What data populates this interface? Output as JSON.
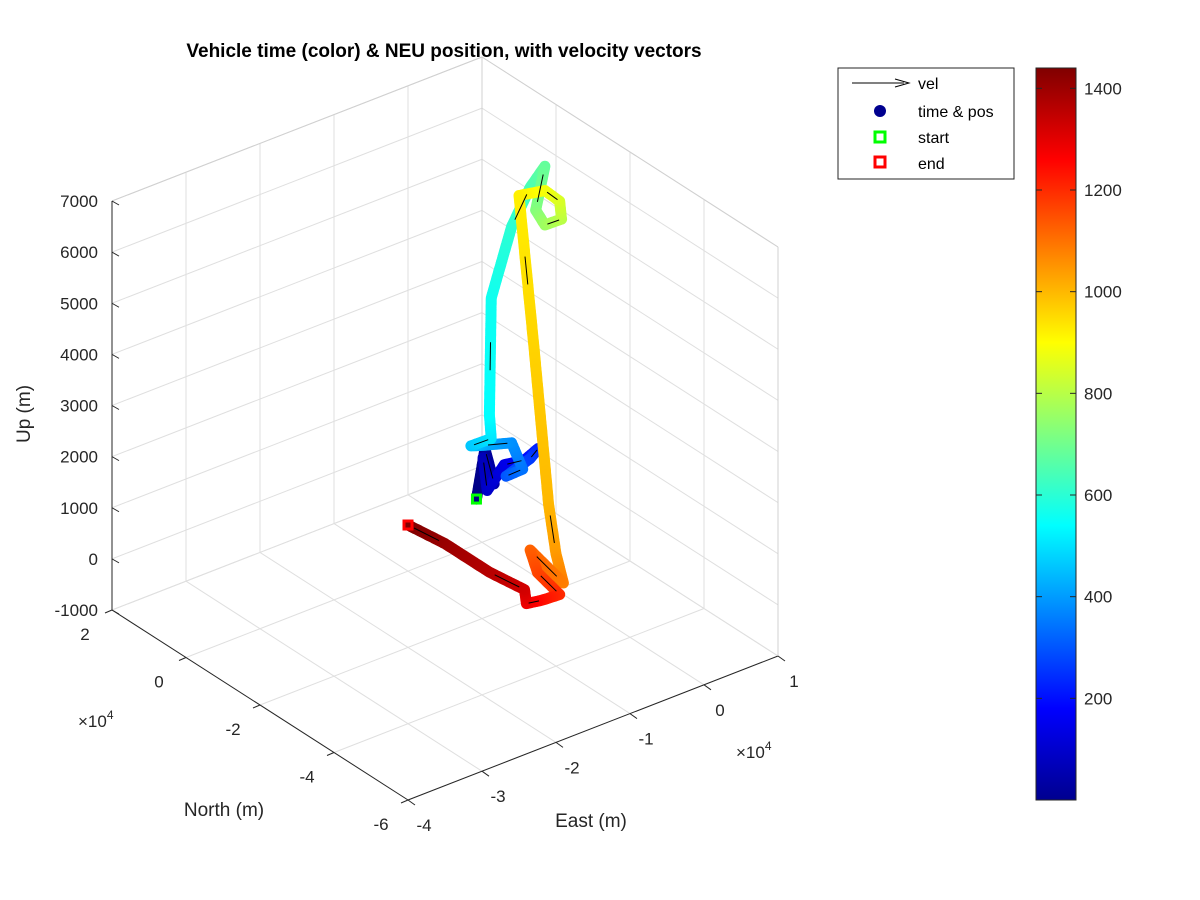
{
  "chart_data": {
    "type": "scatter3d",
    "title": "Vehicle time (color) & NEU position, with velocity vectors",
    "xlabel": "East (m)",
    "ylabel": "North (m)",
    "zlabel": "Up (m)",
    "x_exponent": "×10",
    "x_exponent_power": "4",
    "y_exponent": "×10",
    "y_exponent_power": "4",
    "xlim": [
      -40000,
      10000
    ],
    "ylim": [
      -60000,
      20000
    ],
    "zlim": [
      -1000,
      7000
    ],
    "x_ticks": [
      "-4",
      "-3",
      "-2",
      "-1",
      "0",
      "1"
    ],
    "y_ticks": [
      "-6",
      "-4",
      "-2",
      "0",
      "2"
    ],
    "z_ticks": [
      "-1000",
      "0",
      "1000",
      "2000",
      "3000",
      "4000",
      "5000",
      "6000",
      "7000"
    ],
    "grid": true,
    "legend_position": "top-right",
    "legend": [
      {
        "label": "vel",
        "marker": "arrow",
        "color": "#000000"
      },
      {
        "label": "time & pos",
        "marker": "filled-circle",
        "color": "#00008f"
      },
      {
        "label": "start",
        "marker": "open-square",
        "color": "#00ff00"
      },
      {
        "label": "end",
        "marker": "open-square",
        "color": "#ff0000"
      }
    ],
    "colorbar": {
      "colormap": "jet",
      "range": [
        0,
        1440
      ],
      "ticks": [
        "200",
        "400",
        "600",
        "800",
        "1000",
        "1200",
        "1400"
      ]
    },
    "trajectory": [
      {
        "t": 0,
        "x": -1500,
        "y": -1500,
        "z": 0
      },
      {
        "t": 30,
        "x": 100,
        "y": -600,
        "z": 850
      },
      {
        "t": 60,
        "x": 2000,
        "y": 700,
        "z": 0
      },
      {
        "t": 80,
        "x": 1800,
        "y": 3300,
        "z": 400
      },
      {
        "t": 100,
        "x": 3200,
        "y": 5000,
        "z": -400
      },
      {
        "t": 140,
        "x": 6000,
        "y": 6000,
        "z": -100
      },
      {
        "t": 180,
        "x": 9000,
        "y": 6500,
        "z": -200
      },
      {
        "t": 220,
        "x": 11000,
        "y": 6800,
        "z": -100
      },
      {
        "t": 260,
        "x": 11000,
        "y": 9000,
        "z": -400
      },
      {
        "t": 300,
        "x": 8000,
        "y": 9500,
        "z": -600
      },
      {
        "t": 340,
        "x": 9000,
        "y": 7000,
        "z": -400
      },
      {
        "t": 380,
        "x": 9500,
        "y": 11000,
        "z": -100
      },
      {
        "t": 420,
        "x": 7500,
        "y": 14500,
        "z": -200
      },
      {
        "t": 460,
        "x": 5000,
        "y": 13000,
        "z": 0
      },
      {
        "t": 500,
        "x": 7000,
        "y": 11500,
        "z": 100
      },
      {
        "t": 540,
        "x": 6000,
        "y": 10000,
        "z": 700
      },
      {
        "t": 560,
        "x": 6000,
        "y": 9500,
        "z": 3000
      },
      {
        "t": 600,
        "x": 7000,
        "y": 6000,
        "z": 4500
      },
      {
        "t": 640,
        "x": 7000,
        "y": 1000,
        "z": 5500
      },
      {
        "t": 680,
        "x": 7000,
        "y": -3000,
        "z": 6100
      },
      {
        "t": 720,
        "x": 4500,
        "y": -5500,
        "z": 5500
      },
      {
        "t": 760,
        "x": 4000,
        "y": -9000,
        "z": 5400
      },
      {
        "t": 800,
        "x": 5500,
        "y": -10500,
        "z": 5500
      },
      {
        "t": 840,
        "x": 7000,
        "y": -7000,
        "z": 5600
      },
      {
        "t": 880,
        "x": 6500,
        "y": -4000,
        "z": 5700
      },
      {
        "t": 920,
        "x": 3000,
        "y": -4000,
        "z": 5800
      },
      {
        "t": 960,
        "x": 0,
        "y": -14000,
        "z": 3500
      },
      {
        "t": 1000,
        "x": -1500,
        "y": -21000,
        "z": 800
      },
      {
        "t": 1040,
        "x": -2000,
        "y": -24000,
        "z": 0
      },
      {
        "t": 1080,
        "x": -2500,
        "y": -27000,
        "z": -400
      },
      {
        "t": 1120,
        "x": -5000,
        "y": -23000,
        "z": 200
      },
      {
        "t": 1160,
        "x": -6000,
        "y": -27000,
        "z": 0
      },
      {
        "t": 1200,
        "x": -5000,
        "y": -31000,
        "z": -300
      },
      {
        "t": 1240,
        "x": -8000,
        "y": -32000,
        "z": -200
      },
      {
        "t": 1280,
        "x": -11000,
        "y": -34000,
        "z": 0
      },
      {
        "t": 1320,
        "x": -10000,
        "y": -31500,
        "z": 100
      },
      {
        "t": 1360,
        "x": -12000,
        "y": -26000,
        "z": 300
      },
      {
        "t": 1400,
        "x": -12000,
        "y": -14000,
        "z": 300
      },
      {
        "t": 1440,
        "x": -12000,
        "y": -4000,
        "z": 200
      }
    ]
  }
}
